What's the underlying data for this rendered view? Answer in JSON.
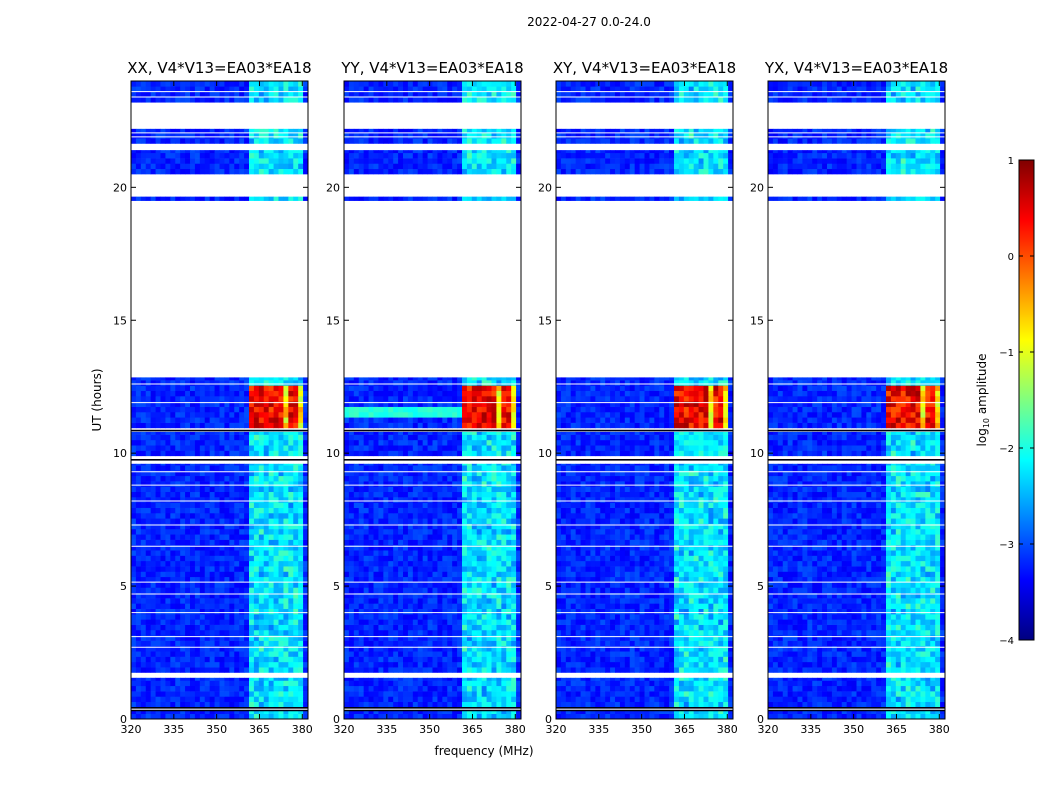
{
  "chart_data": {
    "type": "heatmap",
    "suptitle": "2022-04-27 0.0-24.0",
    "xlabel": "frequency (MHz)",
    "ylabel": "UT (hours)",
    "xlim": [
      320,
      382
    ],
    "ylim": [
      0,
      24
    ],
    "xticks": [
      320,
      335,
      350,
      365,
      380
    ],
    "yticks": [
      0,
      5,
      10,
      15,
      20
    ],
    "panels": [
      {
        "title": "XX, V4*V13=EA03*EA18",
        "pol": "XX",
        "storm_line": false
      },
      {
        "title": "YY, V4*V13=EA03*EA18",
        "pol": "YY",
        "storm_line": true
      },
      {
        "title": "XY, V4*V13=EA03*EA18",
        "pol": "XY",
        "storm_line": false
      },
      {
        "title": "YX, V4*V13=EA03*EA18",
        "pol": "YX",
        "storm_line": false
      }
    ],
    "data_blocks_ut": [
      [
        0.0,
        0.3
      ],
      [
        0.45,
        1.55
      ],
      [
        1.75,
        9.6
      ],
      [
        9.9,
        10.8
      ],
      [
        10.95,
        12.85
      ],
      [
        19.5,
        19.65
      ],
      [
        20.5,
        21.4
      ],
      [
        21.65,
        22.2
      ],
      [
        23.2,
        24.0
      ]
    ],
    "rfi_band_mhz": [
      361,
      380
    ],
    "strong_rfi": {
      "ut_range": [
        10.95,
        12.6
      ],
      "freq_mhz": [
        360.5,
        379.5
      ],
      "log_amp": 0.4
    },
    "background_log_amp": -3.2,
    "colorbar": {
      "label": "log10 amplitude",
      "colormap": "jet",
      "range": [
        -4,
        1
      ],
      "ticks": [
        1,
        0,
        -1,
        -2,
        -3,
        -4
      ],
      "tick_labels": [
        "1",
        "0",
        "−1",
        "−2",
        "−3",
        "−4"
      ]
    }
  }
}
